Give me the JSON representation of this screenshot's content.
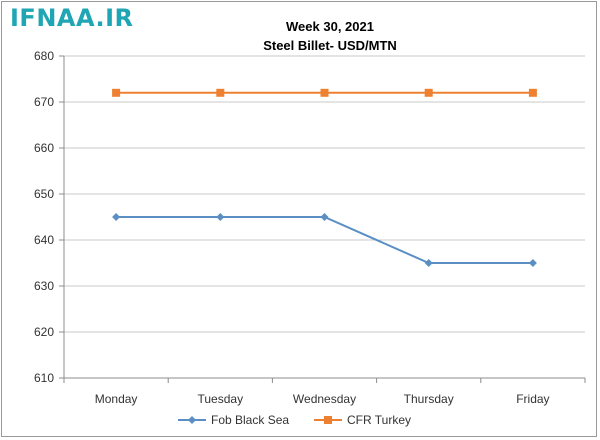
{
  "brand": "IFNAA.IR",
  "chart_data": {
    "type": "line",
    "title": "Week 30, 2021",
    "subtitle": "Steel Billet- USD/MTN",
    "categories": [
      "Monday",
      "Tuesday",
      "Wednesday",
      "Thursday",
      "Friday"
    ],
    "series": [
      {
        "name": "Fob Black Sea",
        "values": [
          645,
          645,
          645,
          635,
          635
        ],
        "color": "#5b8fc4",
        "marker": "diamond"
      },
      {
        "name": "CFR Turkey",
        "values": [
          672,
          672,
          672,
          672,
          672
        ],
        "color": "#ee8131",
        "marker": "square"
      }
    ],
    "ylim": [
      610,
      680
    ],
    "yticks": [
      610,
      620,
      630,
      640,
      650,
      660,
      670,
      680
    ],
    "grid": "horizontal",
    "legend": "bottom"
  }
}
